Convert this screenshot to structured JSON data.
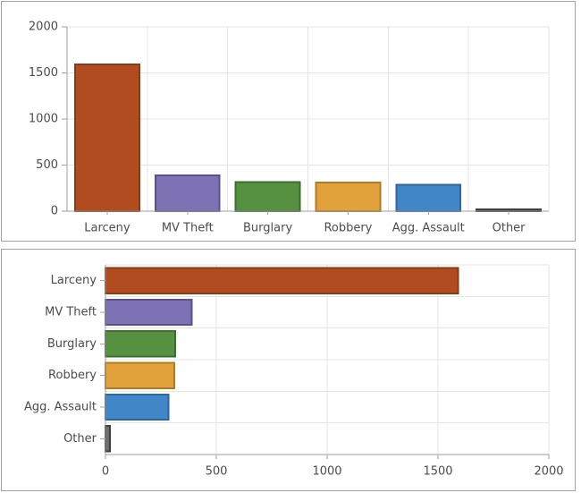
{
  "chart_data": [
    {
      "type": "bar",
      "orientation": "vertical",
      "title": "",
      "xlabel": "",
      "ylabel": "",
      "legend": "none",
      "grid": true,
      "categories": [
        "Larceny",
        "MV Theft",
        "Burglary",
        "Robbery",
        "Agg. Assault",
        "Other"
      ],
      "values": [
        1590,
        390,
        315,
        310,
        285,
        20
      ],
      "bar_colors": [
        "#b04c20",
        "#7e72b5",
        "#559140",
        "#e2a23b",
        "#4186c6",
        "#6f6f6f"
      ],
      "bar_border_colors": [
        "#8a3a14",
        "#5a5190",
        "#3e6e2d",
        "#b07b25",
        "#2e66a0",
        "#3f3f3f"
      ],
      "value_axis": {
        "min": 0,
        "max": 2000,
        "ticks": [
          0,
          500,
          1000,
          1500,
          2000
        ]
      }
    },
    {
      "type": "bar",
      "orientation": "horizontal",
      "title": "",
      "xlabel": "",
      "ylabel": "",
      "legend": "none",
      "grid": true,
      "categories": [
        "Larceny",
        "MV Theft",
        "Burglary",
        "Robbery",
        "Agg. Assault",
        "Other"
      ],
      "values": [
        1590,
        390,
        315,
        310,
        285,
        20
      ],
      "bar_colors": [
        "#b04c20",
        "#7e72b5",
        "#559140",
        "#e2a23b",
        "#4186c6",
        "#6f6f6f"
      ],
      "bar_border_colors": [
        "#8a3a14",
        "#5a5190",
        "#3e6e2d",
        "#b07b25",
        "#2e66a0",
        "#3f3f3f"
      ],
      "value_axis": {
        "min": 0,
        "max": 2000,
        "ticks": [
          0,
          500,
          1000,
          1500,
          2000
        ]
      }
    }
  ],
  "styles": {
    "background": "#ffffff",
    "panel_border": "#a3a3a3",
    "grid_color": "#e4e4e4",
    "axis_color": "#9f9f9f",
    "label_color": "#4c4c4c"
  }
}
